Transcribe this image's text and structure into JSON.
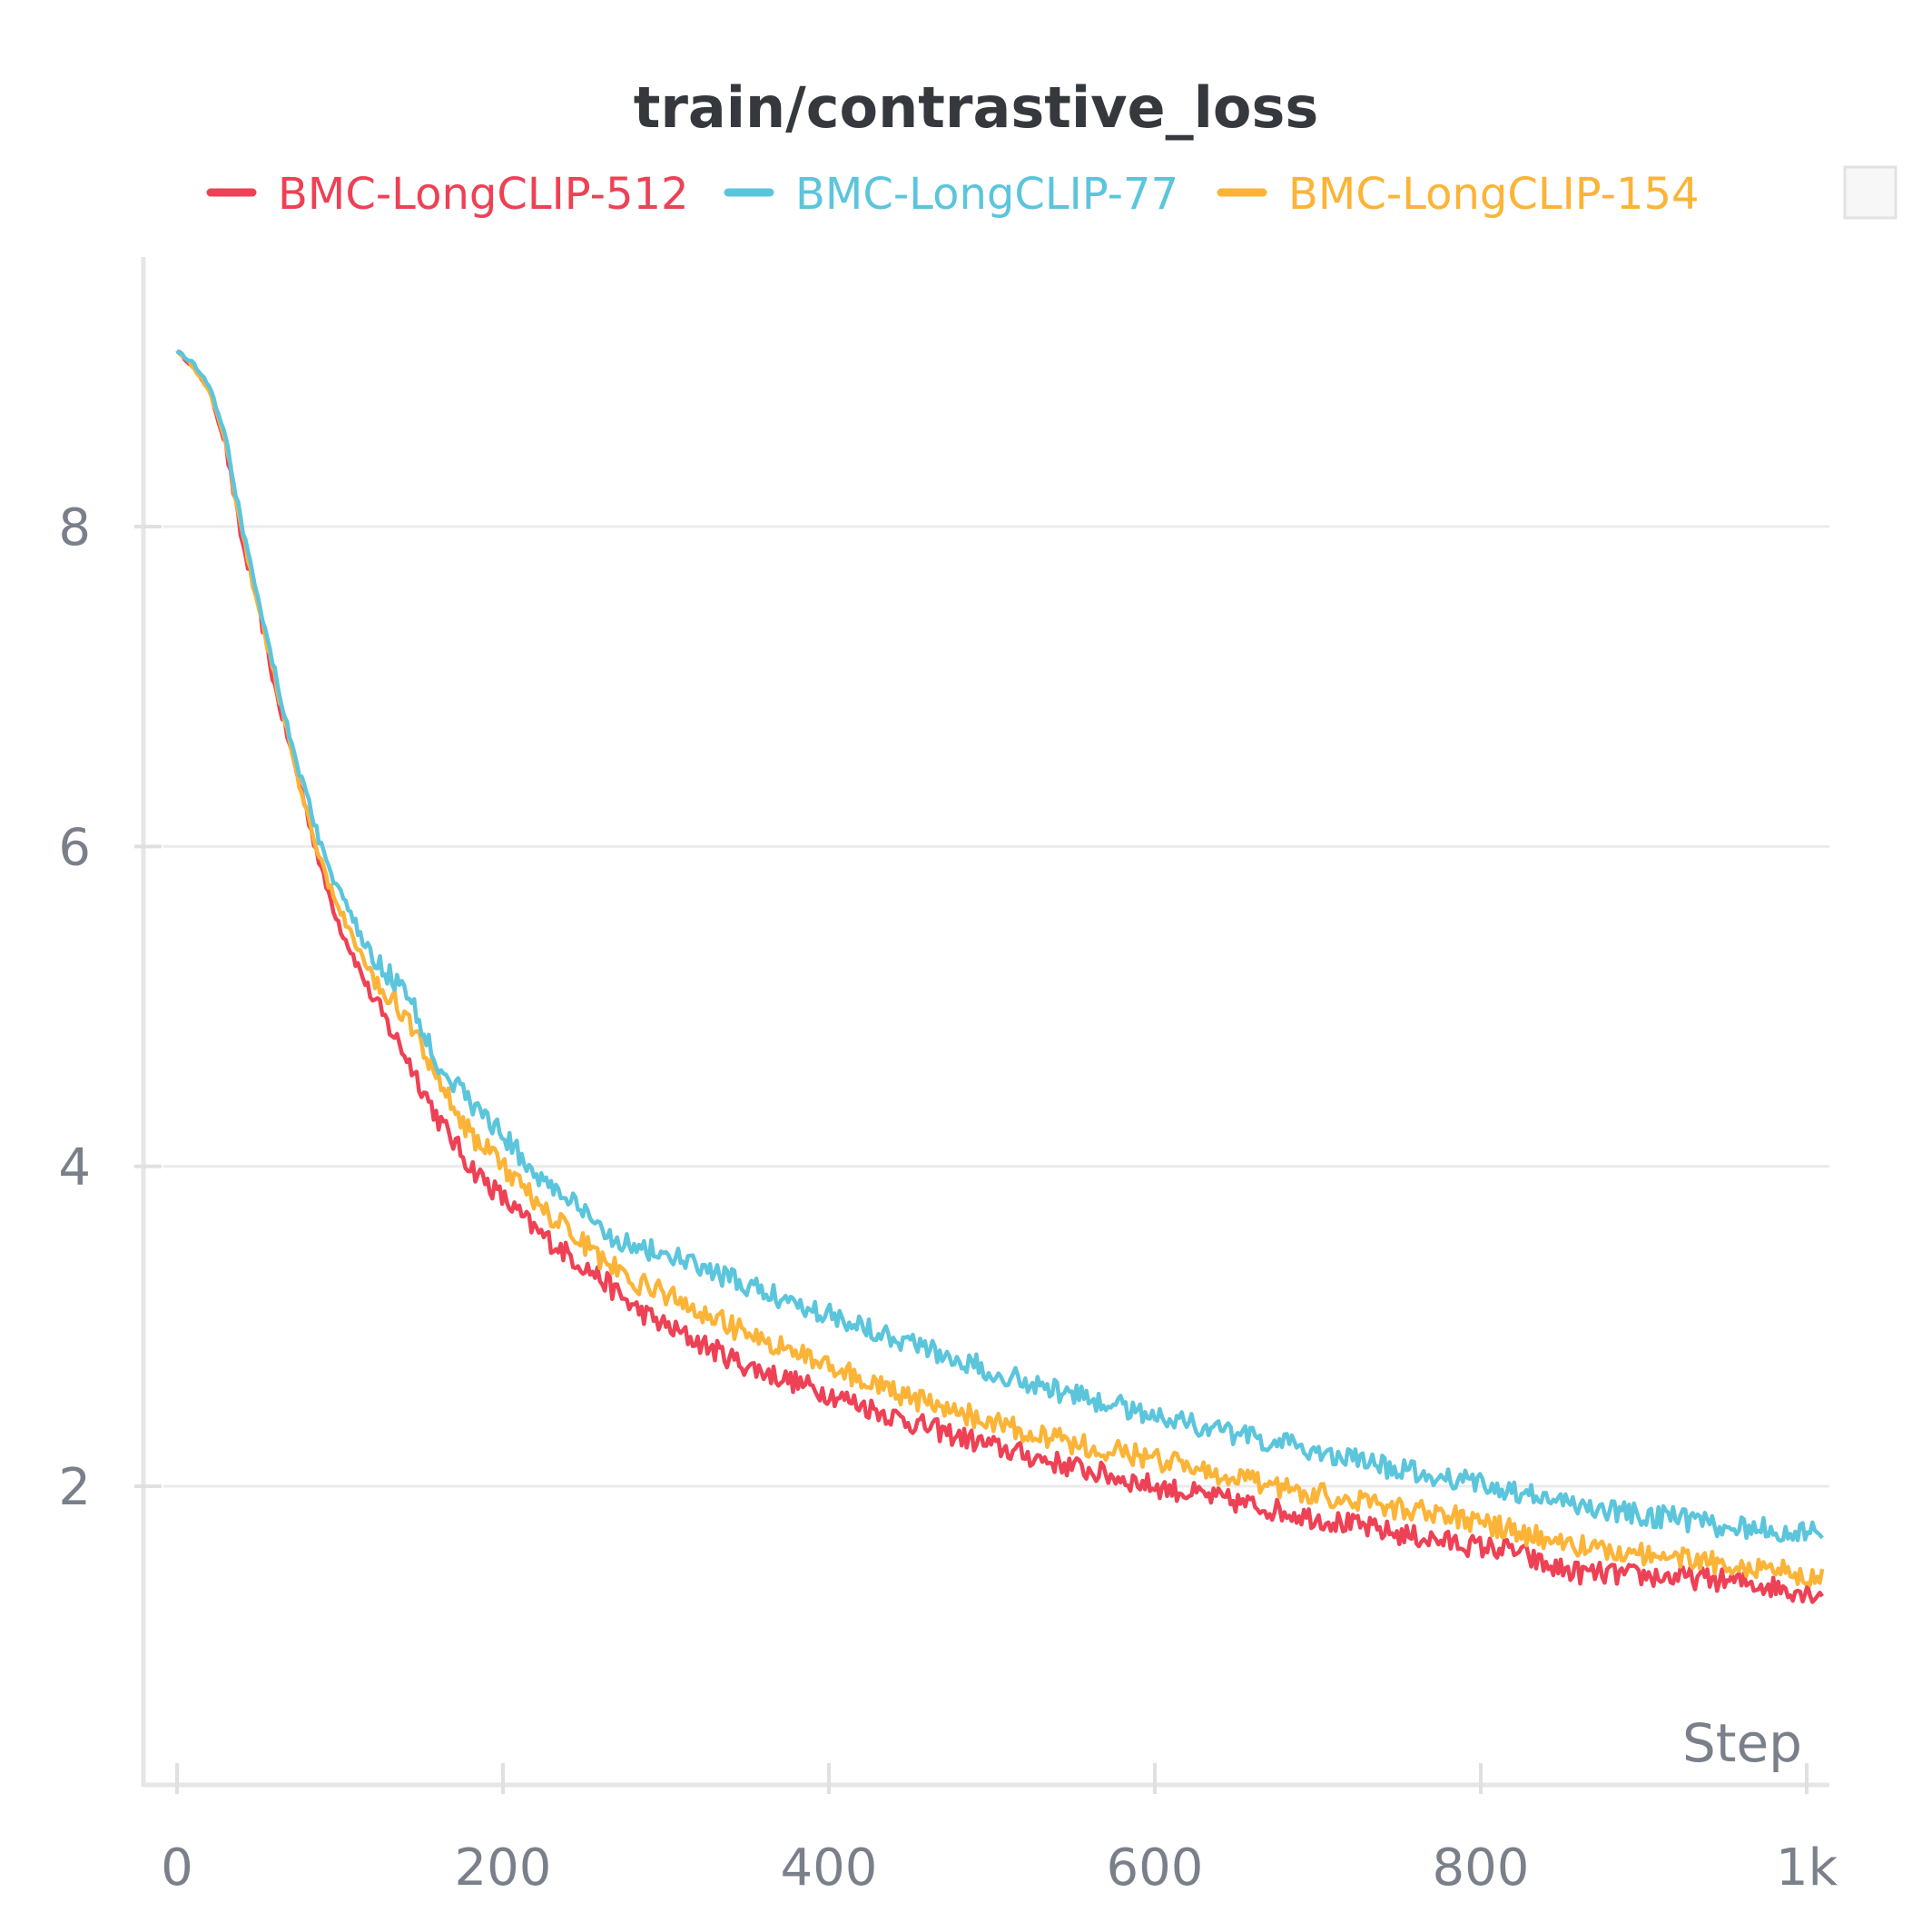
{
  "chart_data": {
    "type": "line",
    "title": "train/contrastive_loss",
    "xlabel": "Step",
    "ylabel": "",
    "xlim": [
      0,
      1000
    ],
    "ylim": [
      0.2,
      9.5
    ],
    "x_ticks": [
      0,
      200,
      400,
      600,
      800,
      1000
    ],
    "x_tick_labels": [
      "0",
      "200",
      "400",
      "600",
      "800",
      "1k"
    ],
    "y_ticks": [
      2,
      4,
      6,
      8
    ],
    "y_tick_labels": [
      "2",
      "4",
      "6",
      "8"
    ],
    "grid": true,
    "legend_position": "top",
    "series": [
      {
        "name": "BMC-LongCLIP-512",
        "color": "#ee4155",
        "x": [
          0,
          10,
          20,
          30,
          40,
          50,
          60,
          70,
          80,
          90,
          100,
          120,
          140,
          160,
          180,
          200,
          220,
          240,
          260,
          280,
          300,
          350,
          400,
          450,
          500,
          550,
          600,
          650,
          700,
          750,
          800,
          820,
          840,
          860,
          880,
          900,
          920,
          940,
          960,
          980,
          1000,
          1010
        ],
        "y": [
          9.1,
          9.0,
          8.85,
          8.5,
          7.9,
          7.5,
          7.0,
          6.6,
          6.2,
          5.8,
          5.5,
          5.05,
          4.7,
          4.3,
          4.0,
          3.8,
          3.6,
          3.45,
          3.3,
          3.12,
          3.0,
          2.75,
          2.58,
          2.4,
          2.25,
          2.12,
          2.0,
          1.9,
          1.8,
          1.7,
          1.62,
          1.6,
          1.5,
          1.46,
          1.45,
          1.44,
          1.43,
          1.42,
          1.4,
          1.37,
          1.34,
          1.33
        ]
      },
      {
        "name": "BMC-LongCLIP-77",
        "color": "#5bc5dc",
        "x": [
          0,
          10,
          20,
          30,
          40,
          50,
          60,
          70,
          80,
          90,
          100,
          120,
          140,
          160,
          180,
          200,
          220,
          240,
          260,
          280,
          300,
          350,
          400,
          450,
          500,
          550,
          600,
          650,
          700,
          750,
          800,
          820,
          840,
          860,
          880,
          900,
          920,
          940,
          960,
          980,
          1000,
          1010
        ],
        "y": [
          9.1,
          9.02,
          8.88,
          8.55,
          8.0,
          7.55,
          7.1,
          6.65,
          6.3,
          5.95,
          5.7,
          5.3,
          5.1,
          4.65,
          4.4,
          4.2,
          3.95,
          3.8,
          3.6,
          3.5,
          3.45,
          3.25,
          3.08,
          2.9,
          2.72,
          2.57,
          2.45,
          2.32,
          2.22,
          2.1,
          2.02,
          1.97,
          1.92,
          1.88,
          1.85,
          1.82,
          1.8,
          1.76,
          1.74,
          1.73,
          1.7,
          1.72
        ]
      },
      {
        "name": "BMC-LongCLIP-154",
        "color": "#fbb437",
        "x": [
          0,
          10,
          20,
          30,
          40,
          50,
          60,
          70,
          80,
          90,
          100,
          120,
          140,
          160,
          180,
          200,
          220,
          240,
          260,
          280,
          300,
          350,
          400,
          450,
          500,
          550,
          600,
          650,
          700,
          750,
          800,
          820,
          840,
          860,
          880,
          900,
          920,
          940,
          960,
          980,
          1000,
          1010
        ],
        "y": [
          9.1,
          9.0,
          8.85,
          8.52,
          7.95,
          7.5,
          7.05,
          6.6,
          6.2,
          5.85,
          5.6,
          5.2,
          4.95,
          4.55,
          4.2,
          4.0,
          3.78,
          3.6,
          3.42,
          3.28,
          3.2,
          2.95,
          2.75,
          2.55,
          2.4,
          2.27,
          2.17,
          2.05,
          1.95,
          1.86,
          1.78,
          1.72,
          1.67,
          1.63,
          1.6,
          1.58,
          1.56,
          1.53,
          1.5,
          1.48,
          1.45,
          1.43
        ]
      }
    ]
  },
  "menu_icon": "panel-square"
}
